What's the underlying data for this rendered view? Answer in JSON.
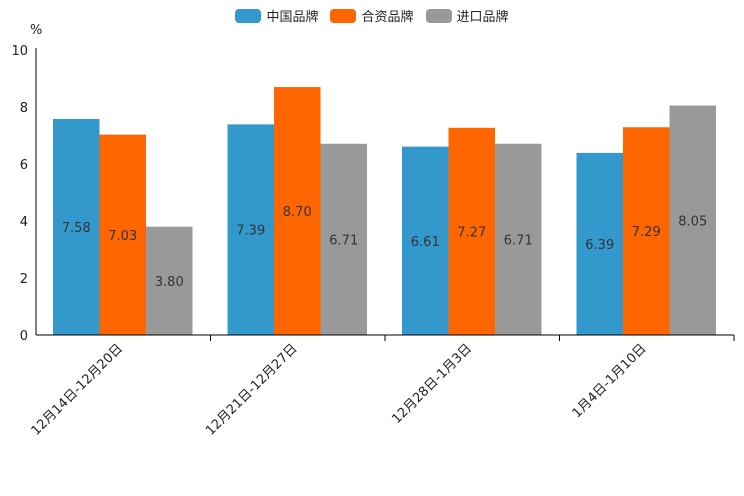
{
  "chart_data": {
    "type": "bar",
    "unit_label": "%",
    "categories": [
      "12月14日-12月20日",
      "12月21日-12月27日",
      "12月28日-1月3日",
      "1月4日-1月10日"
    ],
    "series": [
      {
        "name": "中国品牌",
        "color": "#3399cc",
        "values": [
          7.58,
          7.39,
          6.61,
          6.39
        ]
      },
      {
        "name": "合资品牌",
        "color": "#ff6600",
        "values": [
          7.03,
          8.7,
          7.27,
          7.29
        ]
      },
      {
        "name": "进口品牌",
        "color": "#999999",
        "values": [
          3.8,
          6.71,
          6.71,
          8.05
        ]
      }
    ],
    "ylim": [
      0,
      10
    ],
    "yticks": [
      "0",
      "2",
      "4",
      "6",
      "8",
      "10"
    ],
    "legend_position": "top-center"
  }
}
